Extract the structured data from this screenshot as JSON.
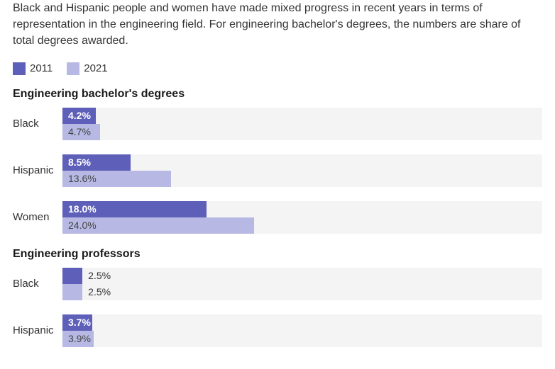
{
  "description": "Black and Hispanic people and women have made mixed progress in recent years in terms of representation in the engineering field. For engineering bachelor's degrees, the numbers are share of total degrees awarded.",
  "legend": [
    {
      "year": "2011",
      "color": "#5e5fb8"
    },
    {
      "year": "2021",
      "color": "#b7b9e4"
    }
  ],
  "chart": {
    "type": "bar",
    "max_pct": 60,
    "track_bg": "#f4f4f5",
    "bar_colors": {
      "y2011": "#5e5fb8",
      "y2021": "#b7b9e4"
    },
    "text_inside_color": "#ffffff",
    "text_outside_color": "#333333",
    "label_threshold_pct": 3.0
  },
  "sections": [
    {
      "title": "Engineering bachelor's degrees",
      "rows": [
        {
          "label": "Black",
          "v2011": 4.2,
          "v2021": 4.7,
          "s2011": "4.2%",
          "s2021": "4.7%"
        },
        {
          "label": "Hispanic",
          "v2011": 8.5,
          "v2021": 13.6,
          "s2011": "8.5%",
          "s2021": "13.6%"
        },
        {
          "label": "Women",
          "v2011": 18.0,
          "v2021": 24.0,
          "s2011": "18.0%",
          "s2021": "24.0%"
        }
      ]
    },
    {
      "title": "Engineering professors",
      "rows": [
        {
          "label": "Black",
          "v2011": 2.5,
          "v2021": 2.5,
          "s2011": "2.5%",
          "s2021": "2.5%"
        },
        {
          "label": "Hispanic",
          "v2011": 3.7,
          "v2021": 3.9,
          "s2011": "3.7%",
          "s2021": "3.9%"
        }
      ]
    }
  ]
}
